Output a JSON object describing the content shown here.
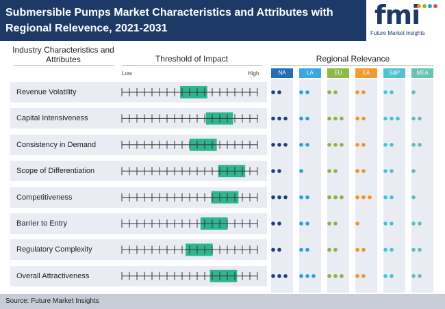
{
  "header": {
    "title": "Submersible Pumps Market Characteristics and Attributes with Regional Relevence, 2021-2031",
    "logo_text": "fmi",
    "logo_subtitle": "Future Market Insights"
  },
  "columns": {
    "characteristics": "Industry Characteristics and Attributes",
    "threshold": "Threshold of Impact",
    "regional": "Regional Relevance",
    "low": "Low",
    "high": "High"
  },
  "source": "Source: Future Market Insights",
  "colors": {
    "header_bg": "#1d3a67",
    "impact_bar": "#2fb58f",
    "row_bg": "#e9ecf3",
    "NA": "#1f3f7a",
    "LA": "#2a9fd6",
    "EU": "#8ab33f",
    "EA": "#f39321",
    "SAP": "#45c3d0",
    "MEA": "#5cc0ad"
  },
  "chart_data": {
    "type": "table",
    "scale": {
      "min": 0,
      "max": 10,
      "ticks": 19,
      "low_label": "Low",
      "high_label": "High"
    },
    "regions": [
      {
        "key": "NA",
        "label": "NA",
        "color": "#1f3f7a",
        "badge": "#1f6fb7",
        "text": "#ffffff"
      },
      {
        "key": "LA",
        "label": "LA",
        "color": "#2a9fd6",
        "badge": "#3aa8de",
        "text": "#ffffff"
      },
      {
        "key": "EU",
        "label": "EU",
        "color": "#8ab33f",
        "badge": "#8cb94a",
        "text": "#ffffff"
      },
      {
        "key": "EA",
        "label": "EA",
        "color": "#f39321",
        "badge": "#f39a2c",
        "text": "#ffffff"
      },
      {
        "key": "SAP",
        "label": "S&P",
        "color": "#45c3d0",
        "badge": "#4ec3d2",
        "text": "#ffffff"
      },
      {
        "key": "MEA",
        "label": "MEA",
        "color": "#5cc0ad",
        "badge": "#66c4b2",
        "text": "#ffffff"
      }
    ],
    "rows": [
      {
        "name": "Revenue Volatility",
        "impact_from": 4.3,
        "impact_to": 6.3,
        "relevance": {
          "NA": 2,
          "LA": 2,
          "EU": 2,
          "EA": 2,
          "SAP": 2,
          "MEA": 1
        }
      },
      {
        "name": "Capital Intensiveness",
        "impact_from": 6.2,
        "impact_to": 8.2,
        "relevance": {
          "NA": 3,
          "LA": 2,
          "EU": 3,
          "EA": 2,
          "SAP": 3,
          "MEA": 2
        }
      },
      {
        "name": "Consistency in Demand",
        "impact_from": 5.0,
        "impact_to": 7.0,
        "relevance": {
          "NA": 3,
          "LA": 2,
          "EU": 3,
          "EA": 2,
          "SAP": 2,
          "MEA": 2
        }
      },
      {
        "name": "Scope of Differentiation",
        "impact_from": 7.1,
        "impact_to": 9.1,
        "relevance": {
          "NA": 2,
          "LA": 1,
          "EU": 2,
          "EA": 2,
          "SAP": 2,
          "MEA": 1
        }
      },
      {
        "name": "Competitiveness",
        "impact_from": 6.6,
        "impact_to": 8.6,
        "relevance": {
          "NA": 3,
          "LA": 2,
          "EU": 3,
          "EA": 3,
          "SAP": 2,
          "MEA": 1
        }
      },
      {
        "name": "Barrier to Entry",
        "impact_from": 5.8,
        "impact_to": 7.8,
        "relevance": {
          "NA": 2,
          "LA": 2,
          "EU": 2,
          "EA": 1,
          "SAP": 2,
          "MEA": 2
        }
      },
      {
        "name": "Regulatory Complexity",
        "impact_from": 4.7,
        "impact_to": 6.7,
        "relevance": {
          "NA": 2,
          "LA": 2,
          "EU": 2,
          "EA": 2,
          "SAP": 2,
          "MEA": 2
        }
      },
      {
        "name": "Overall Attractiveness",
        "impact_from": 6.5,
        "impact_to": 8.5,
        "relevance": {
          "NA": 3,
          "LA": 3,
          "EU": 3,
          "EA": 2,
          "SAP": 2,
          "MEA": 2
        }
      }
    ]
  }
}
